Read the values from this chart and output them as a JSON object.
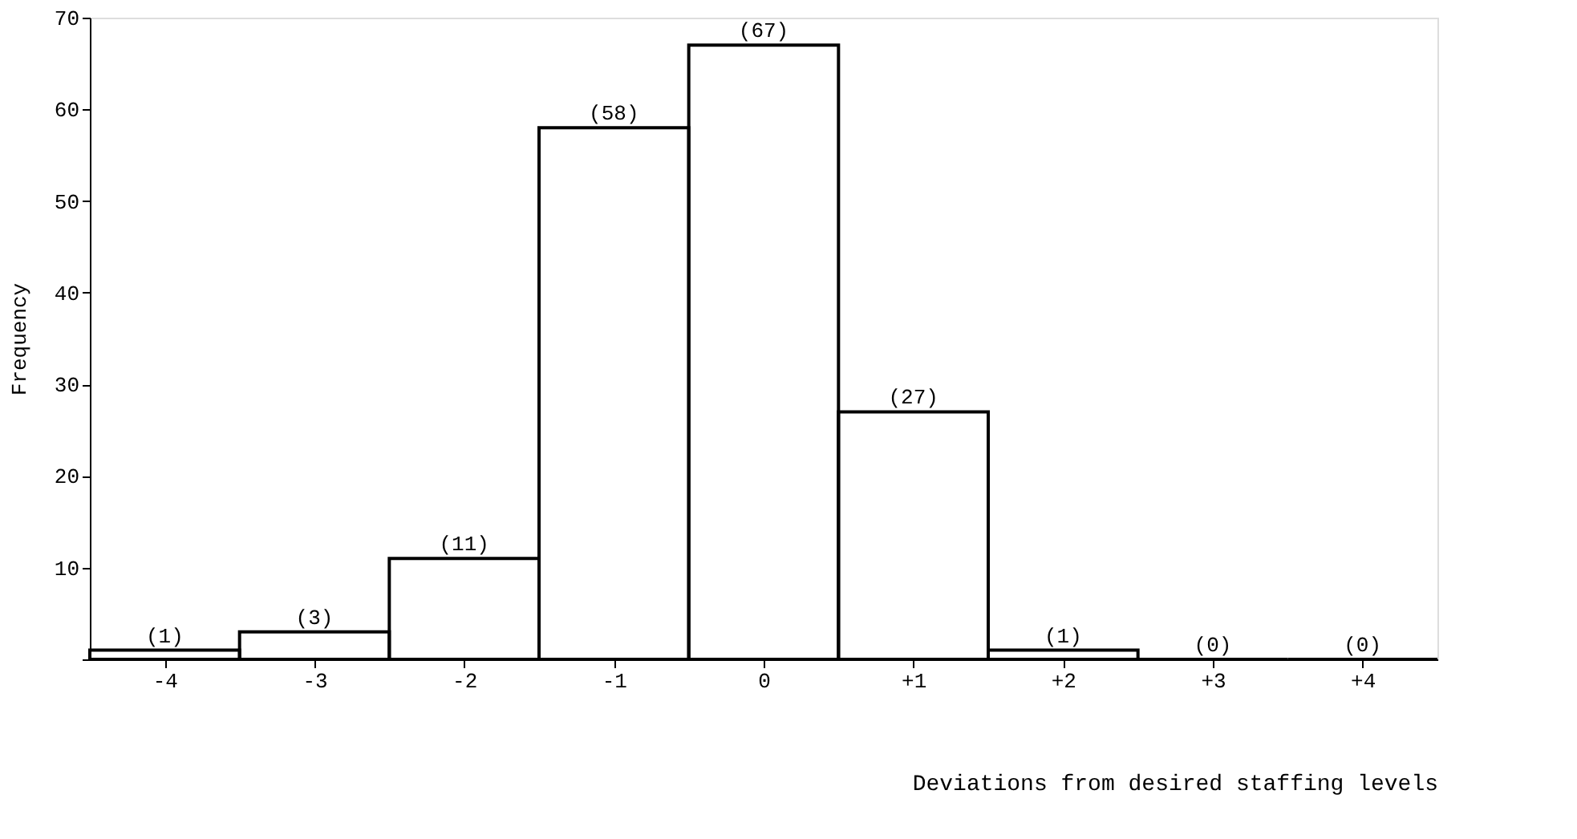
{
  "chart_data": {
    "type": "bar",
    "xlabel": "Deviations from desired staffing levels",
    "ylabel": "Frequency",
    "categories": [
      "-4",
      "-3",
      "-2",
      "-1",
      "0",
      "+1",
      "+2",
      "+3",
      "+4"
    ],
    "values": [
      1,
      3,
      11,
      58,
      67,
      27,
      1,
      0,
      0
    ],
    "value_labels": [
      "(1)",
      "(3)",
      "(11)",
      "(58)",
      "(67)",
      "(27)",
      "(1)",
      "(0)",
      "(0)"
    ],
    "color": "#000000",
    "ylim": [
      0,
      70
    ],
    "yticks": [
      {
        "value": 0,
        "label": null
      },
      10,
      20,
      30,
      40,
      50,
      60,
      70
    ]
  }
}
